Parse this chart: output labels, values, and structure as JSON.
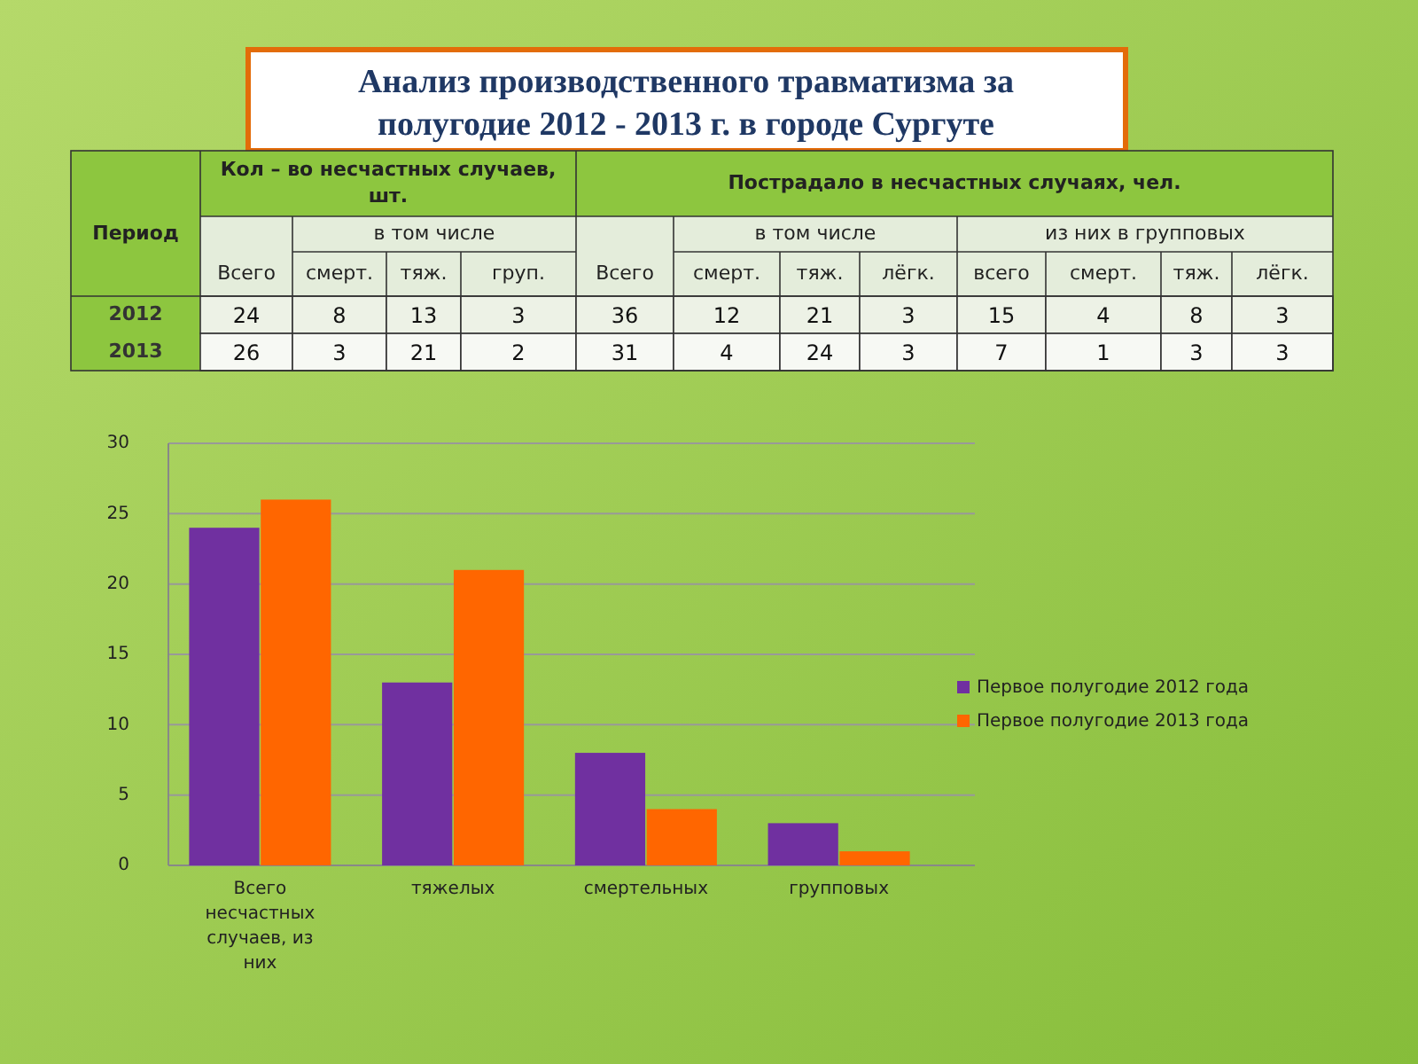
{
  "chart_data": [
    {
      "type": "heatmap",
      "title": "Анализ производственного травматизма за полугодие 2012 - 2013 г. в городе Сургуте",
      "annotations": [
        "Период",
        "Кол – во несчастных случаев, шт.",
        "Пострадало в несчастных случаях, чел.",
        "в том числе",
        "в том числе",
        "из них в групповых"
      ],
      "categories": [
        "Всего",
        "смерт.",
        "тяж.",
        "груп.",
        "Всего",
        "смерт.",
        "тяж.",
        "лёгк.",
        "всего",
        "смерт.",
        "тяж.",
        "лёгк."
      ],
      "y_categories": [
        "2012",
        "2013"
      ],
      "data_labels": true,
      "cells": [
        [
          24,
          8,
          13,
          3,
          36,
          12,
          21,
          3,
          15,
          4,
          8,
          3
        ],
        [
          26,
          3,
          21,
          2,
          31,
          4,
          24,
          3,
          7,
          1,
          3,
          3
        ]
      ]
    },
    {
      "type": "bar",
      "categories": [
        "Всего несчастных случаев, из них",
        "тяжелых",
        "смертельных",
        "групповых"
      ],
      "series": [
        {
          "name": "Первое полугодие 2012 года",
          "color": "#7030a0",
          "values": [
            24,
            13,
            8,
            3
          ]
        },
        {
          "name": "Первое полугодие 2013 года",
          "color": "#ff6600",
          "values": [
            26,
            21,
            4,
            1
          ]
        }
      ],
      "ylim": [
        0,
        30
      ],
      "yticks": [
        0,
        5,
        10,
        15,
        20,
        25,
        30
      ],
      "grid": "y",
      "legend": "right"
    }
  ]
}
